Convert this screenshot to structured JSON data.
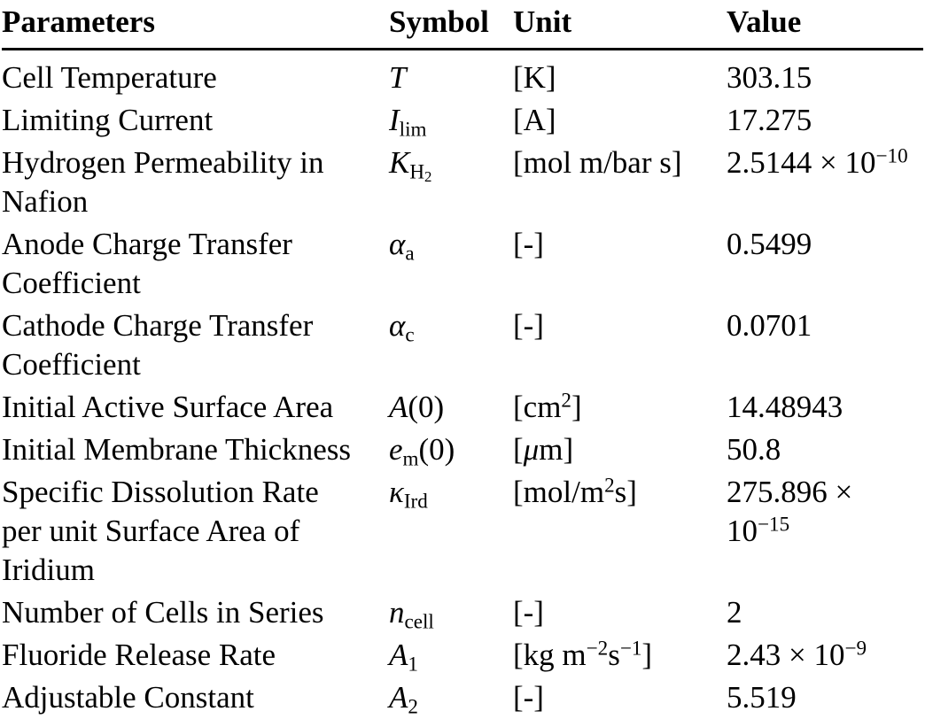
{
  "table": {
    "columns": [
      {
        "label": "Parameters"
      },
      {
        "label": "Symbol"
      },
      {
        "label": "Unit"
      },
      {
        "label": "Value"
      }
    ],
    "rows": [
      {
        "param": [
          {
            "s": "r",
            "t": "Cell Temperature"
          }
        ],
        "symbol": [
          {
            "s": "i",
            "t": "T"
          }
        ],
        "unit": [
          {
            "s": "r",
            "t": "[K]"
          }
        ],
        "value": [
          {
            "s": "r",
            "t": "303.15"
          }
        ]
      },
      {
        "param": [
          {
            "s": "r",
            "t": "Limiting Current"
          }
        ],
        "symbol": [
          {
            "s": "i",
            "t": "I"
          },
          {
            "s": "sub",
            "t": "lim"
          }
        ],
        "unit": [
          {
            "s": "r",
            "t": "[A]"
          }
        ],
        "value": [
          {
            "s": "r",
            "t": "17.275"
          }
        ]
      },
      {
        "param": [
          {
            "s": "r",
            "t": "Hydrogen Permeability in Nafion"
          }
        ],
        "symbol": [
          {
            "s": "i",
            "t": "K"
          },
          {
            "s": "sub",
            "t": "H"
          },
          {
            "s": "subsub",
            "t": "2"
          }
        ],
        "unit": [
          {
            "s": "r",
            "t": "[mol m/bar s]"
          }
        ],
        "value": [
          {
            "s": "r",
            "t": "2.5144 × 10"
          },
          {
            "s": "sup",
            "t": "−10"
          }
        ]
      },
      {
        "param": [
          {
            "s": "r",
            "t": "Anode Charge Transfer Coefficient"
          }
        ],
        "symbol": [
          {
            "s": "i",
            "t": "α"
          },
          {
            "s": "sub",
            "t": "a"
          }
        ],
        "unit": [
          {
            "s": "r",
            "t": "[-]"
          }
        ],
        "value": [
          {
            "s": "r",
            "t": "0.5499"
          }
        ]
      },
      {
        "param": [
          {
            "s": "r",
            "t": "Cathode Charge Transfer Coefficient"
          }
        ],
        "symbol": [
          {
            "s": "i",
            "t": "α"
          },
          {
            "s": "sub",
            "t": "c"
          }
        ],
        "unit": [
          {
            "s": "r",
            "t": "[-]"
          }
        ],
        "value": [
          {
            "s": "r",
            "t": "0.0701"
          }
        ]
      },
      {
        "param": [
          {
            "s": "r",
            "t": "Initial Active Surface Area"
          }
        ],
        "symbol": [
          {
            "s": "i",
            "t": "A"
          },
          {
            "s": "r",
            "t": "(0)"
          }
        ],
        "unit": [
          {
            "s": "r",
            "t": "[cm"
          },
          {
            "s": "sup",
            "t": "2"
          },
          {
            "s": "r",
            "t": "]"
          }
        ],
        "value": [
          {
            "s": "r",
            "t": "14.48943"
          }
        ]
      },
      {
        "param": [
          {
            "s": "r",
            "t": "Initial Membrane Thickness"
          }
        ],
        "symbol": [
          {
            "s": "i",
            "t": "e"
          },
          {
            "s": "sub",
            "t": "m"
          },
          {
            "s": "r",
            "t": "(0)"
          }
        ],
        "unit": [
          {
            "s": "r",
            "t": "["
          },
          {
            "s": "i",
            "t": "μ"
          },
          {
            "s": "r",
            "t": "m]"
          }
        ],
        "value": [
          {
            "s": "r",
            "t": "50.8"
          }
        ]
      },
      {
        "param": [
          {
            "s": "r",
            "t": "Specific Dissolution Rate per unit Surface Area of Iridium"
          }
        ],
        "symbol": [
          {
            "s": "i",
            "t": "κ"
          },
          {
            "s": "sub",
            "t": "Ird"
          }
        ],
        "unit": [
          {
            "s": "r",
            "t": "[mol/m"
          },
          {
            "s": "sup",
            "t": "2"
          },
          {
            "s": "r",
            "t": "s]"
          }
        ],
        "value": [
          {
            "s": "r",
            "t": "275.896 × 10"
          },
          {
            "s": "sup",
            "t": "−15"
          }
        ]
      },
      {
        "param": [
          {
            "s": "r",
            "t": "Number of Cells in Series"
          }
        ],
        "symbol": [
          {
            "s": "i",
            "t": "n"
          },
          {
            "s": "sub",
            "t": "cell"
          }
        ],
        "unit": [
          {
            "s": "r",
            "t": "[-]"
          }
        ],
        "value": [
          {
            "s": "r",
            "t": "2"
          }
        ]
      },
      {
        "param": [
          {
            "s": "r",
            "t": "Fluoride Release Rate"
          }
        ],
        "symbol": [
          {
            "s": "i",
            "t": "A"
          },
          {
            "s": "sub",
            "t": "1"
          }
        ],
        "unit": [
          {
            "s": "r",
            "t": "[kg m"
          },
          {
            "s": "sup",
            "t": "−2"
          },
          {
            "s": "r",
            "t": "s"
          },
          {
            "s": "sup",
            "t": "−1"
          },
          {
            "s": "r",
            "t": "]"
          }
        ],
        "value": [
          {
            "s": "r",
            "t": "2.43 × 10"
          },
          {
            "s": "sup",
            "t": "−9"
          }
        ]
      },
      {
        "param": [
          {
            "s": "r",
            "t": "Adjustable Constant"
          }
        ],
        "symbol": [
          {
            "s": "i",
            "t": "A"
          },
          {
            "s": "sub",
            "t": "2"
          }
        ],
        "unit": [
          {
            "s": "r",
            "t": "[-]"
          }
        ],
        "value": [
          {
            "s": "r",
            "t": "5.519"
          }
        ]
      }
    ]
  }
}
